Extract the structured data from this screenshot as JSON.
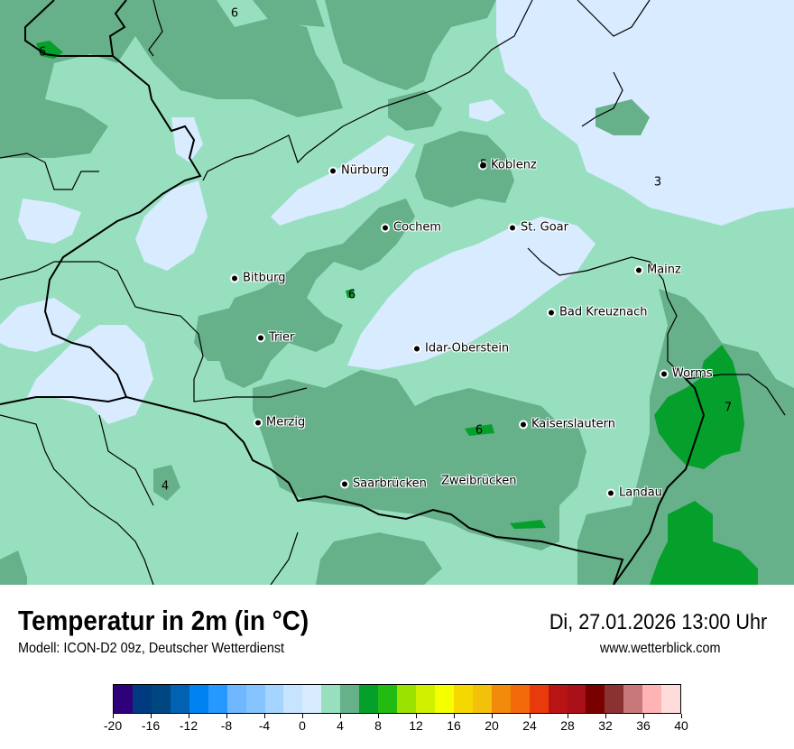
{
  "header": {
    "title": "Temperatur in 2m (in °C)",
    "model": "Modell: ICON-D2 09z, Deutscher Wetterdienst",
    "datetime": "Di, 27.01.2026 13:00 Uhr",
    "website": "www.wetterblick.com"
  },
  "map": {
    "colors": {
      "light_green": "#98dfc0",
      "mid_green": "#66b08a",
      "light_blue": "#d8ebff",
      "green": "#05a02c",
      "border": "#000000"
    },
    "cities": [
      {
        "name": "Nürburg"
      },
      {
        "name": "Koblenz"
      },
      {
        "name": "Cochem"
      },
      {
        "name": "St. Goar"
      },
      {
        "name": "Mainz"
      },
      {
        "name": "Bitburg"
      },
      {
        "name": "Bad Kreuznach"
      },
      {
        "name": "Trier"
      },
      {
        "name": "Idar-Oberstein"
      },
      {
        "name": "Worms"
      },
      {
        "name": "Merzig"
      },
      {
        "name": "Kaiserslautern"
      },
      {
        "name": "Saarbrücken"
      },
      {
        "name": "Zweibrücken"
      },
      {
        "name": "Landau"
      }
    ],
    "value_labels": [
      "6",
      "6",
      "5",
      "3",
      "6",
      "7",
      "6",
      "4"
    ]
  },
  "legend": {
    "colors": [
      "#2e007a",
      "#003a80",
      "#004680",
      "#0062b0",
      "#0082f0",
      "#2599ff",
      "#6fb8ff",
      "#85c4ff",
      "#a5d4ff",
      "#c6e4ff",
      "#d8ebff",
      "#98dfc0",
      "#66b08a",
      "#05a02c",
      "#22bb11",
      "#9be200",
      "#d0f000",
      "#f5ff00",
      "#f5d800",
      "#f3c00a",
      "#f28a0a",
      "#f26a0a",
      "#e83a0a",
      "#b91414",
      "#aa1018",
      "#7a0000",
      "#8a3232",
      "#c87878",
      "#ffb4b4",
      "#ffdcdc"
    ],
    "ticks": [
      "-20",
      "-16",
      "-12",
      "-8",
      "-4",
      "0",
      "4",
      "8",
      "12",
      "16",
      "20",
      "24",
      "28",
      "32",
      "36",
      "40"
    ],
    "range": [
      -20,
      40
    ],
    "step": 2
  }
}
